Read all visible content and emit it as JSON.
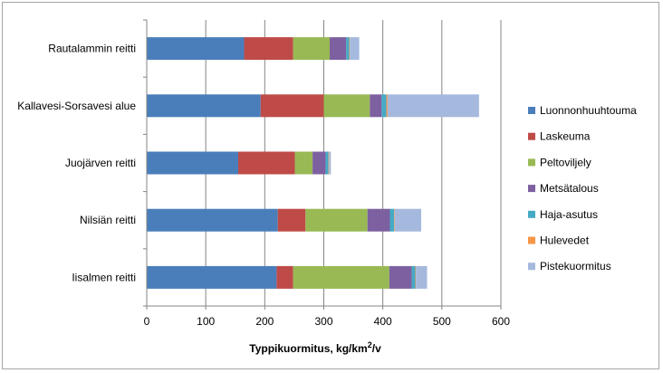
{
  "chart_data": {
    "type": "bar",
    "orientation": "horizontal",
    "stacked": true,
    "categories": [
      "Rautalammin reitti",
      "Kallavesi-Sorsavesi alue",
      "Juojärven reitti",
      "Nilsiän reitti",
      "Iisalmen reitti"
    ],
    "series": [
      {
        "name": "Luonnonhuuhtouma",
        "color": "#4a7ebb",
        "values": [
          165,
          193,
          155,
          222,
          220
        ]
      },
      {
        "name": "Laskeuma",
        "color": "#be4b48",
        "values": [
          83,
          107,
          96,
          47,
          28
        ]
      },
      {
        "name": "Peltoviljely",
        "color": "#98b954",
        "values": [
          62,
          78,
          30,
          105,
          163
        ]
      },
      {
        "name": "Metsätalous",
        "color": "#7d60a0",
        "values": [
          28,
          20,
          22,
          38,
          38
        ]
      },
      {
        "name": "Haja-asutus",
        "color": "#46aac5",
        "values": [
          5,
          8,
          5,
          7,
          6
        ]
      },
      {
        "name": "Hulevedet",
        "color": "#f79646",
        "values": [
          1,
          2,
          1,
          1,
          1
        ]
      },
      {
        "name": "Pistekuormitus",
        "color": "#a5b9de",
        "values": [
          16,
          155,
          3,
          45,
          19
        ]
      }
    ],
    "xlim": [
      0,
      600
    ],
    "xticks": [
      "0",
      "100",
      "200",
      "300",
      "400",
      "500",
      "600"
    ],
    "xlabel": {
      "main": "Typpikuormitus,  kg/km",
      "sup": "2",
      "tail": "/v"
    },
    "grid": true,
    "legend": "right"
  }
}
